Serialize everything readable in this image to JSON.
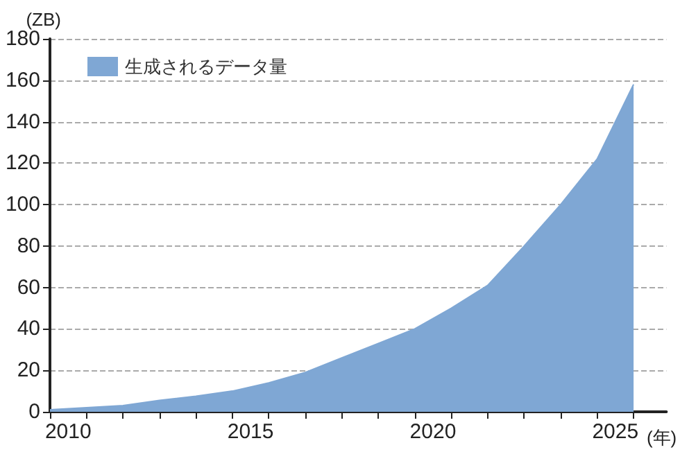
{
  "chart_data": {
    "type": "area",
    "xlabel": "(年)",
    "ylabel": "(ZB)",
    "x": [
      2009.5,
      2010.5,
      2011.5,
      2012.5,
      2013.5,
      2014.5,
      2015.5,
      2016.5,
      2017.5,
      2018.5,
      2019.5,
      2020.5,
      2021.5,
      2022.5,
      2023.5,
      2024.5,
      2025.5
    ],
    "series": [
      {
        "name": "生成されるデータ量",
        "color": "#7fa7d4",
        "values": [
          1,
          2,
          3,
          5.5,
          7.5,
          10,
          14,
          19,
          26,
          33,
          40,
          50,
          61,
          80,
          100,
          122,
          158
        ]
      }
    ],
    "xlim": [
      2009.5,
      2026.4
    ],
    "xticks": [
      {
        "value": 2009.5,
        "label": null
      },
      {
        "value": 2010.5,
        "label": null
      },
      {
        "value": 2011.5,
        "label": null
      },
      {
        "value": 2012.5,
        "label": null
      },
      {
        "value": 2013.5,
        "label": null
      },
      {
        "value": 2014.5,
        "label": null
      },
      {
        "value": 2015.5,
        "label": null
      },
      {
        "value": 2016.5,
        "label": null
      },
      {
        "value": 2017.5,
        "label": null
      },
      {
        "value": 2018.5,
        "label": null
      },
      {
        "value": 2019.5,
        "label": null
      },
      {
        "value": 2020.5,
        "label": null
      },
      {
        "value": 2021.5,
        "label": null
      },
      {
        "value": 2022.5,
        "label": null
      },
      {
        "value": 2023.5,
        "label": null
      },
      {
        "value": 2024.5,
        "label": null
      },
      {
        "value": 2025.5,
        "label": null
      },
      2010,
      2015,
      2020,
      2025
    ],
    "ylim": [
      0,
      180
    ],
    "yticks": [
      0,
      20,
      40,
      60,
      80,
      100,
      120,
      140,
      160,
      180
    ],
    "grid": "y",
    "legend": "top left"
  }
}
